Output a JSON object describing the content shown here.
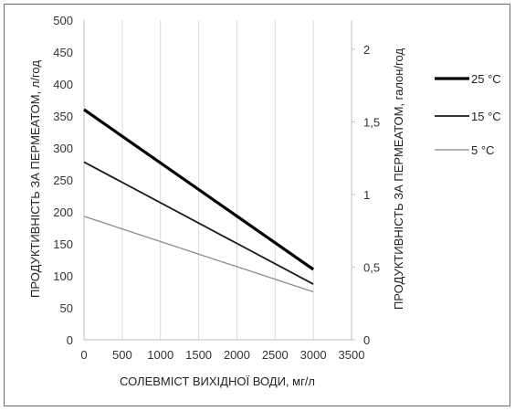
{
  "chart_data": {
    "type": "line",
    "xlabel": "СОЛЕВМІСТ ВИХІДНОЇ ВОДИ, мг/л",
    "ylabel": "ПРОДУКТИВНІСТЬ ЗА ПЕРМЕАТОМ, л/год",
    "y2label": "ПРОДУКТИВНІСТЬ ЗА ПЕРМЕАТОМ, галон/год",
    "xlim": [
      0,
      3500
    ],
    "ylim": [
      0,
      500
    ],
    "y2lim": [
      0,
      2.2
    ],
    "x_ticks": [
      "0",
      "500",
      "1000",
      "1500",
      "2000",
      "2500",
      "3000",
      "3500"
    ],
    "y_ticks": [
      "0",
      "50",
      "100",
      "150",
      "200",
      "250",
      "300",
      "350",
      "400",
      "450",
      "500"
    ],
    "y2_ticks": [
      {
        "value": 0,
        "label": "0"
      },
      {
        "value": 0.5,
        "label": "0,5"
      },
      {
        "value": 1,
        "label": "1"
      },
      {
        "value": 1.5,
        "label": "1,5"
      },
      {
        "value": 2,
        "label": "2"
      }
    ],
    "grid": "vertical",
    "legend_position": "right",
    "series": [
      {
        "name": "25 °C",
        "color": "#000000",
        "width": "bold",
        "x": [
          0,
          3000
        ],
        "y": [
          360,
          110
        ]
      },
      {
        "name": "15 °C",
        "color": "#1a1a1a",
        "width": "normal",
        "x": [
          0,
          3000
        ],
        "y": [
          278,
          87
        ]
      },
      {
        "name": "5 °C",
        "color": "#8c8c8c",
        "width": "thin",
        "x": [
          0,
          3000
        ],
        "y": [
          193,
          75
        ]
      }
    ]
  }
}
